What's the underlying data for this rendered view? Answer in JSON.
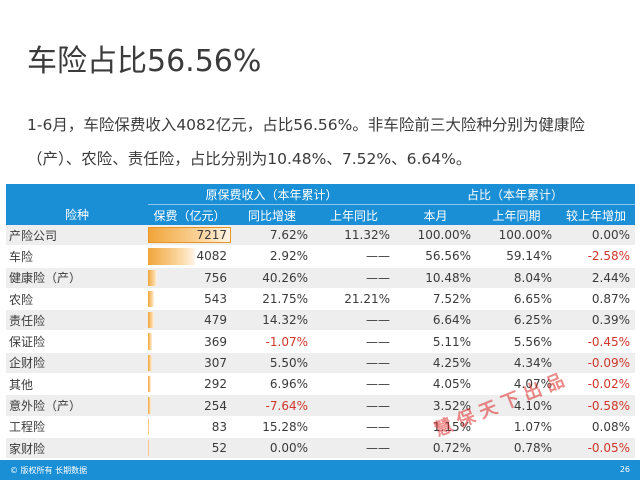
{
  "slide": {
    "title": "车险占比56.56%",
    "subtitle": "1-6月，车险保费收入4082亿元，占比56.56%。非车险前三大险种分别为健康险（产）、农险、责任险，占比分别为10.48%、7.52%、6.64%。",
    "watermark": "慧保天下出品",
    "footer_copyright": "© 版权所有 长期数据",
    "page_number": "26"
  },
  "table": {
    "group_headers": {
      "premium": "原保费收入（本年累计）",
      "share": "占比（本年累计）"
    },
    "columns": [
      "险种",
      "保费（亿元）",
      "同比增速",
      "上年同比",
      "本月",
      "上年同期",
      "较上年增加"
    ],
    "rows": [
      {
        "name": "产险公司",
        "premium": "7217",
        "premium_value": 7217,
        "growth": "7.62%",
        "prev_growth": "11.32%",
        "share": "100.00%",
        "prev_share": "100.00%",
        "change": "0.00%"
      },
      {
        "name": "车险",
        "premium": "4082",
        "premium_value": 4082,
        "growth": "2.92%",
        "prev_growth": "——",
        "share": "56.56%",
        "prev_share": "59.14%",
        "change": "-2.58%"
      },
      {
        "name": "健康险（产）",
        "premium": "756",
        "premium_value": 756,
        "growth": "40.26%",
        "prev_growth": "——",
        "share": "10.48%",
        "prev_share": "8.04%",
        "change": "2.44%"
      },
      {
        "name": "农险",
        "premium": "543",
        "premium_value": 543,
        "growth": "21.75%",
        "prev_growth": "21.21%",
        "share": "7.52%",
        "prev_share": "6.65%",
        "change": "0.87%"
      },
      {
        "name": "责任险",
        "premium": "479",
        "premium_value": 479,
        "growth": "14.32%",
        "prev_growth": "——",
        "share": "6.64%",
        "prev_share": "6.25%",
        "change": "0.39%"
      },
      {
        "name": "保证险",
        "premium": "369",
        "premium_value": 369,
        "growth": "-1.07%",
        "prev_growth": "——",
        "share": "5.11%",
        "prev_share": "5.56%",
        "change": "-0.45%"
      },
      {
        "name": "企财险",
        "premium": "307",
        "premium_value": 307,
        "growth": "5.50%",
        "prev_growth": "——",
        "share": "4.25%",
        "prev_share": "4.34%",
        "change": "-0.09%"
      },
      {
        "name": "其他",
        "premium": "292",
        "premium_value": 292,
        "growth": "6.96%",
        "prev_growth": "——",
        "share": "4.05%",
        "prev_share": "4.07%",
        "change": "-0.02%"
      },
      {
        "name": "意外险（产）",
        "premium": "254",
        "premium_value": 254,
        "growth": "-7.64%",
        "prev_growth": "——",
        "share": "3.52%",
        "prev_share": "4.10%",
        "change": "-0.58%"
      },
      {
        "name": "工程险",
        "premium": "83",
        "premium_value": 83,
        "growth": "15.28%",
        "prev_growth": "——",
        "share": "1.15%",
        "prev_share": "1.07%",
        "change": "0.08%"
      },
      {
        "name": "家财险",
        "premium": "52",
        "premium_value": 52,
        "growth": "0.00%",
        "prev_growth": "——",
        "share": "0.72%",
        "prev_share": "0.78%",
        "change": "-0.05%"
      }
    ]
  },
  "colors": {
    "header_blue": "#1b8fd6",
    "negative_red": "#d0362b",
    "databar_orange": "#f1a53a",
    "row_stripe": "#eeeeee"
  }
}
